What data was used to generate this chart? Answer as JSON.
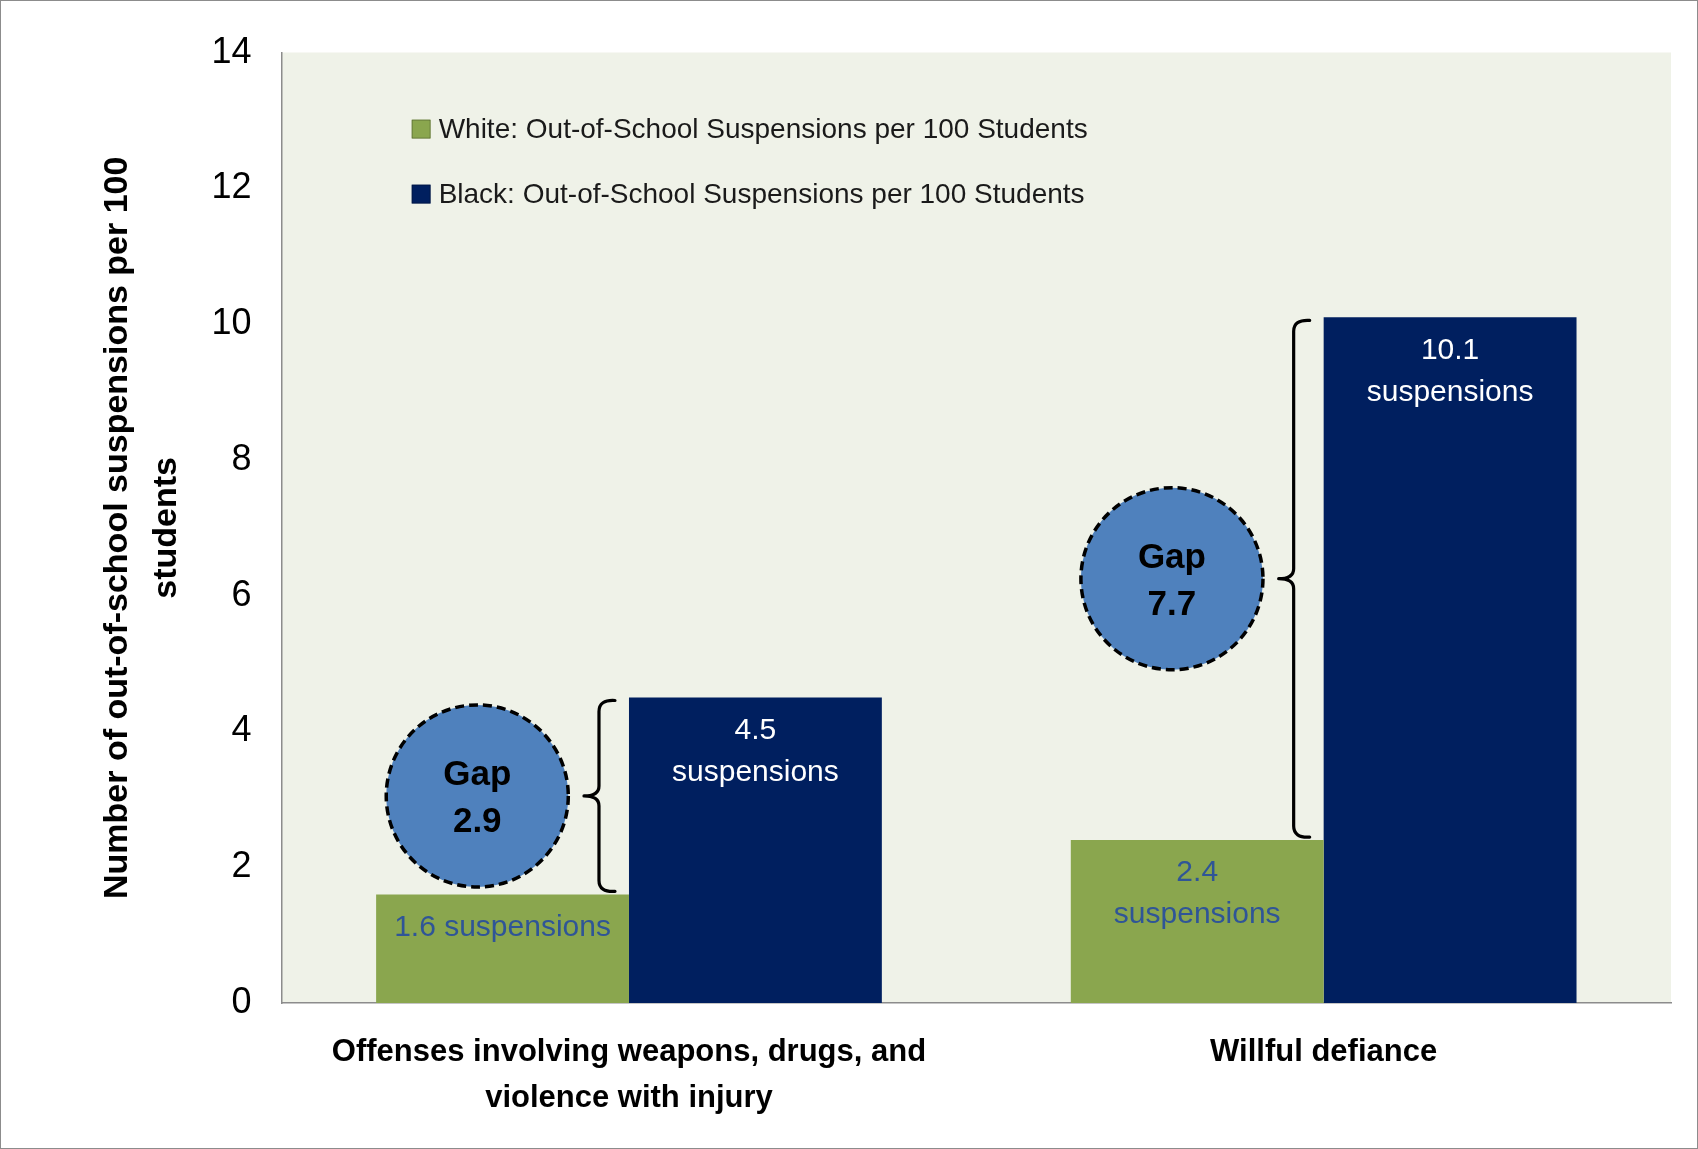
{
  "chart_data": {
    "type": "bar",
    "ylabel": "Number of out-of-school suspensions per 100 students",
    "categories": [
      "Offenses involving weapons, drugs, and violence with injury",
      "Willful defiance"
    ],
    "series": [
      {
        "name": "White: Out-of-School Suspensions per 100 Students",
        "color": "#8aa64e",
        "values": [
          1.6,
          2.4
        ],
        "value_labels": [
          "1.6 suspensions",
          "2.4\nsuspensions"
        ]
      },
      {
        "name": "Black: Out-of-School Suspensions per 100 Students",
        "color": "#001f5f",
        "values": [
          4.5,
          10.1
        ],
        "value_labels": [
          "4.5\nsuspensions",
          "10.1\nsuspensions"
        ]
      }
    ],
    "ylim": [
      0,
      14
    ],
    "yticks": [
      0,
      2,
      4,
      6,
      8,
      10,
      12,
      14
    ],
    "grid": false,
    "legend": "top left",
    "annotations": [
      "Gap\n2.9",
      "Gap\n7.7"
    ]
  }
}
